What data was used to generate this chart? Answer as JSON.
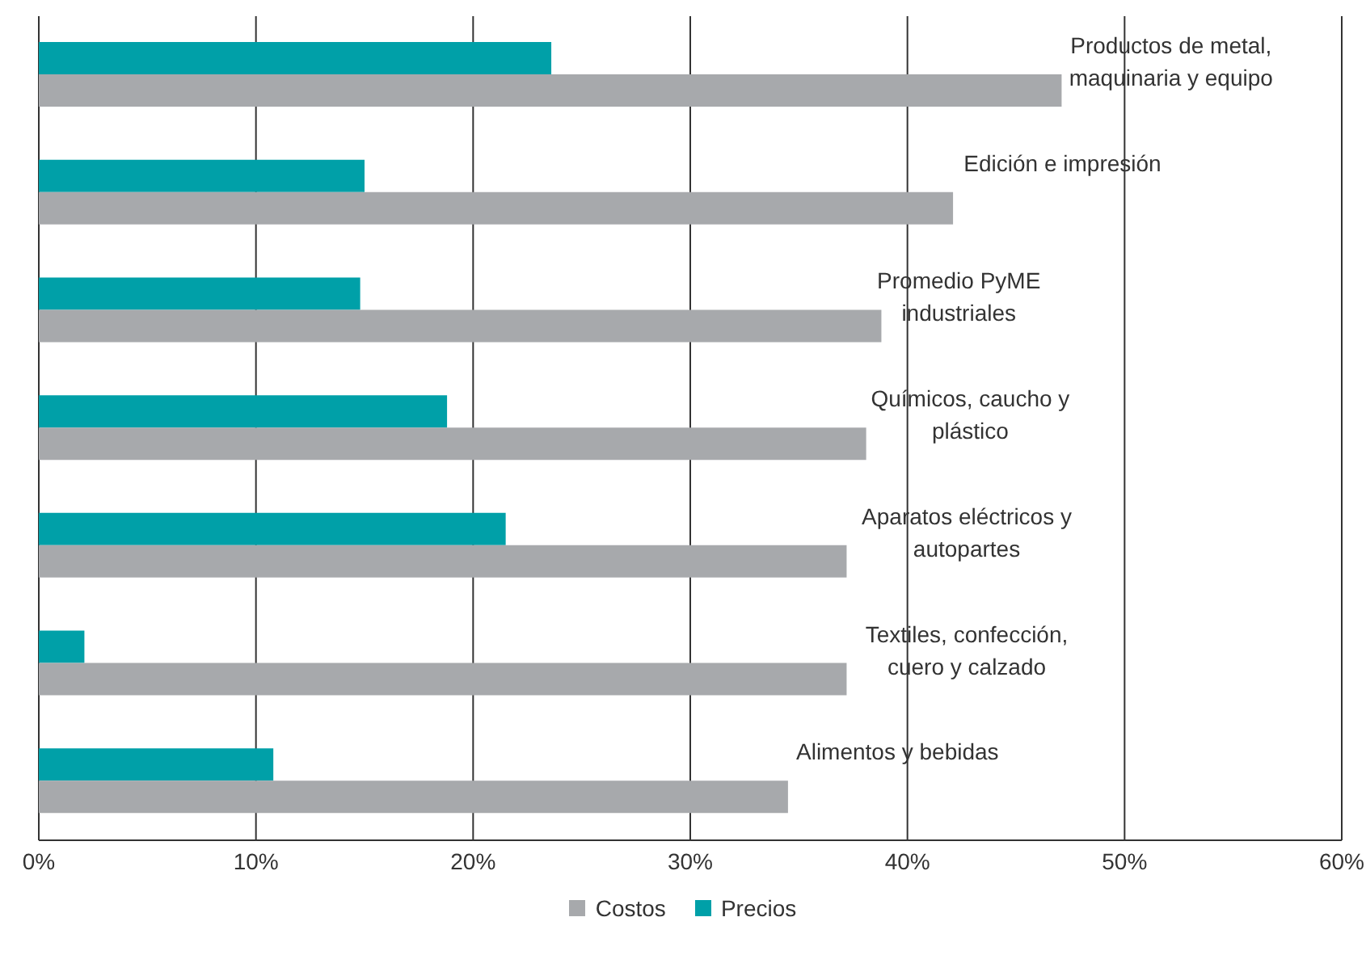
{
  "chart_data": {
    "type": "bar",
    "orientation": "horizontal",
    "categories": [
      "Productos de metal, maquinaria y equipo",
      "Edición e impresión",
      "Promedio PyME industriales",
      "Químicos, caucho y plástico",
      "Aparatos eléctricos y autopartes",
      "Textiles, confección, cuero y calzado",
      "Alimentos y bebidas"
    ],
    "series": [
      {
        "name": "Costos",
        "color": "#a7a9ac",
        "values": [
          47.1,
          42.1,
          38.8,
          38.1,
          37.2,
          37.2,
          34.5
        ]
      },
      {
        "name": "Precios",
        "color": "#00a0a8",
        "values": [
          23.6,
          15.0,
          14.8,
          18.8,
          21.5,
          2.1,
          10.8
        ]
      }
    ],
    "xlim": [
      0,
      60
    ],
    "xticks": [
      {
        "value": 0,
        "label": "0%"
      },
      {
        "value": 10,
        "label": "10%"
      },
      {
        "value": 20,
        "label": "20%"
      },
      {
        "value": 30,
        "label": "30%"
      },
      {
        "value": 40,
        "label": "40%"
      },
      {
        "value": 50,
        "label": "50%"
      },
      {
        "value": 60,
        "label": "60%"
      }
    ],
    "grid": "x",
    "legend": "bottom"
  }
}
